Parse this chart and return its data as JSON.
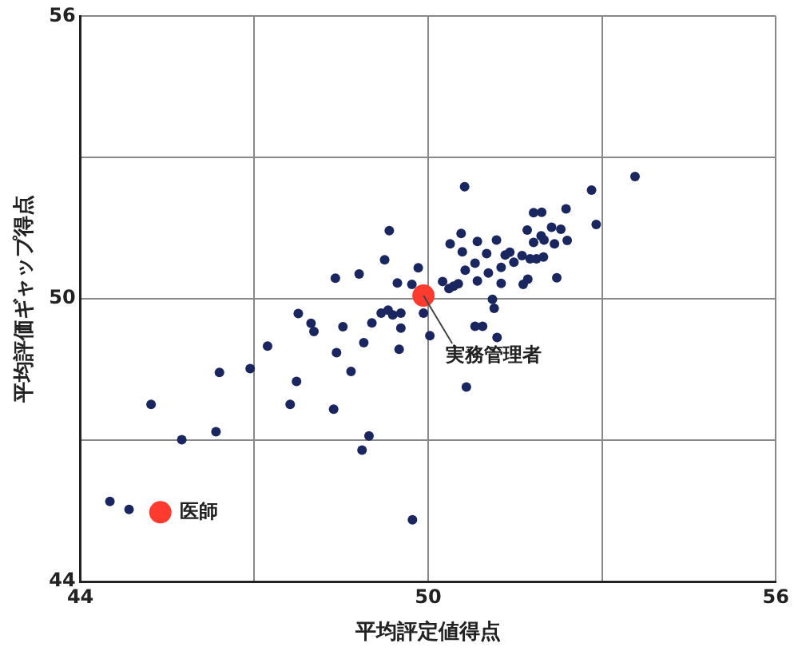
{
  "chart_data": {
    "type": "scatter",
    "xlabel": "平均評定値得点",
    "ylabel": "平均評価ギャップ得点",
    "xlim": [
      44,
      56
    ],
    "ylim": [
      44,
      56
    ],
    "xticks": [
      44,
      {
        "value": 47,
        "label": null
      },
      50,
      {
        "value": 53,
        "label": null
      },
      56
    ],
    "yticks": [
      44,
      {
        "value": 47,
        "label": null
      },
      50,
      {
        "value": 53,
        "label": null
      },
      56
    ],
    "grid": true,
    "legend": false,
    "marker": "circle",
    "series": [
      {
        "color": "#1a2660",
        "x": [
          49.33,
          49.25,
          48.81,
          48.4,
          49.83,
          49.47,
          49.72,
          47.76,
          47.98,
          48.03,
          48.53,
          49.03,
          49.19,
          49.31,
          49.39,
          49.53,
          49.92,
          49.53,
          50.03,
          47.23,
          48.89,
          48.42,
          49.5,
          50.63,
          53.57,
          52.82,
          52.9,
          52.38,
          51.82,
          51.96,
          52.13,
          52.29,
          51.71,
          51.95,
          51.82,
          52.0,
          52.18,
          52.4,
          50.38,
          50.57,
          50.85,
          51.18,
          50.59,
          51.01,
          51.33,
          51.41,
          51.62,
          51.48,
          51.76,
          51.87,
          51.99,
          50.81,
          50.64,
          51.04,
          51.26,
          50.85,
          51.26,
          51.72,
          51.64,
          52.22,
          50.25,
          50.36,
          50.52,
          50.44,
          51.11,
          51.14,
          50.81,
          50.94,
          51.19,
          46.4,
          46.93,
          45.22,
          46.34,
          45.75,
          47.73,
          47.62,
          48.37,
          48.67,
          48.98,
          48.86,
          49.73,
          44.51,
          44.84,
          50.66
        ],
        "values": [
          51.45,
          50.83,
          50.53,
          50.44,
          50.66,
          50.34,
          50.31,
          49.69,
          49.48,
          49.31,
          49.41,
          49.49,
          49.7,
          49.76,
          49.66,
          49.7,
          49.7,
          49.38,
          49.22,
          49.0,
          49.07,
          48.86,
          48.93,
          52.38,
          52.6,
          52.31,
          51.58,
          51.91,
          51.83,
          51.84,
          51.52,
          51.48,
          51.46,
          51.34,
          51.2,
          51.25,
          51.17,
          51.24,
          51.17,
          51.39,
          51.22,
          51.25,
          51.0,
          50.96,
          50.93,
          50.99,
          50.92,
          50.78,
          50.85,
          50.85,
          50.89,
          50.76,
          50.61,
          50.55,
          50.67,
          50.38,
          50.33,
          50.42,
          50.31,
          50.45,
          50.37,
          50.22,
          50.32,
          50.27,
          49.99,
          49.8,
          49.42,
          49.42,
          49.18,
          48.44,
          48.52,
          47.76,
          47.18,
          47.01,
          48.25,
          47.76,
          47.66,
          48.46,
          47.09,
          46.79,
          45.31,
          45.7,
          45.53,
          48.13
        ]
      },
      {
        "color": "#ff3b2f",
        "x": [
          45.38,
          49.92
        ],
        "values": [
          45.47,
          50.07
        ]
      }
    ],
    "annotations": [
      {
        "text": "医師",
        "x": 45.38,
        "y": 45.47
      },
      {
        "text": "実務管理者",
        "x": 49.92,
        "y": 50.07
      }
    ]
  }
}
